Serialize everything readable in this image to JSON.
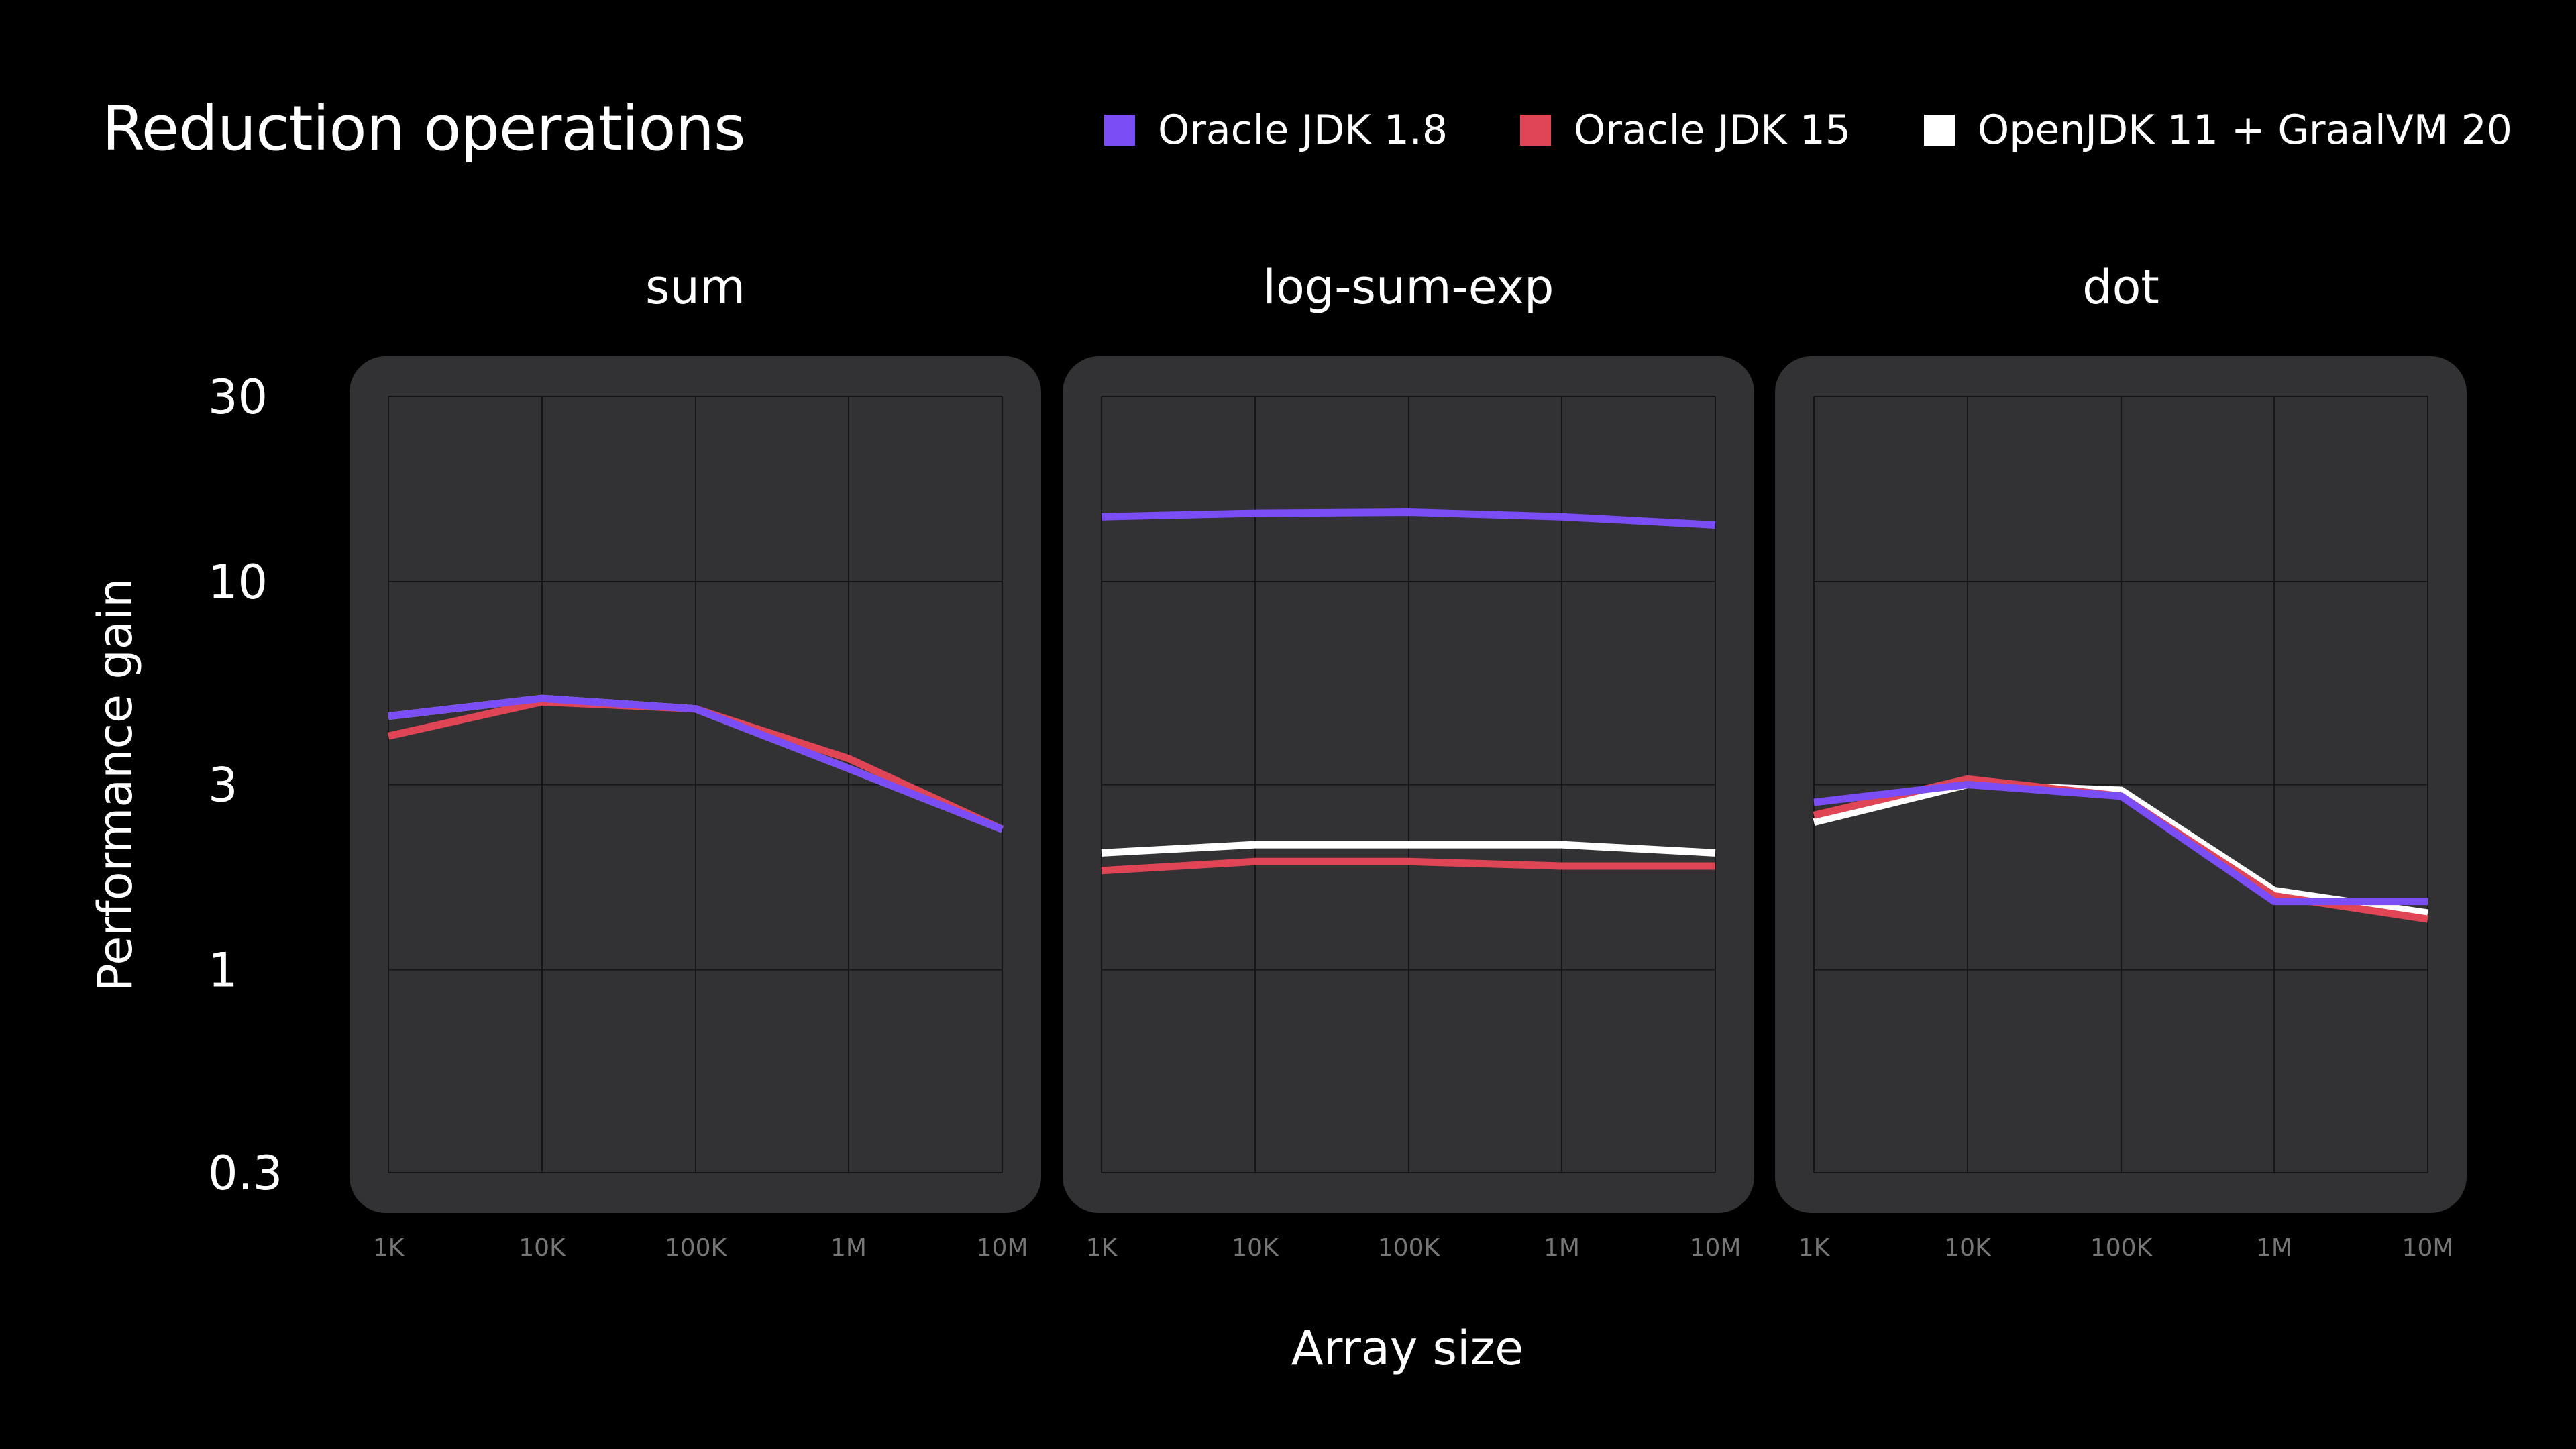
{
  "chart_data": {
    "type": "line",
    "title": "Reduction operations",
    "xlabel": "Array size",
    "ylabel": "Performance gain",
    "y_scale": "log",
    "ylim": [
      0.3,
      30
    ],
    "y_ticks": [
      0.3,
      1,
      3,
      10,
      30
    ],
    "y_tick_labels": [
      "0.3",
      "1",
      "3",
      "10",
      "30"
    ],
    "categories": [
      "1K",
      "10K",
      "100K",
      "1M",
      "10M"
    ],
    "grid": true,
    "legend_position": "top",
    "legend": [
      {
        "name": "Oracle JDK 1.8",
        "color": "#7B4DF5"
      },
      {
        "name": "Oracle JDK 15",
        "color": "#E04556"
      },
      {
        "name": "OpenJDK 11 + GraalVM 20",
        "color": "#FFFFFF"
      }
    ],
    "panels": [
      {
        "title": "sum",
        "series": [
          {
            "name": "OpenJDK 11 + GraalVM 20",
            "values": [
              4.5,
              5.0,
              4.7,
              3.3,
              2.3
            ]
          },
          {
            "name": "Oracle JDK 15",
            "values": [
              4.0,
              4.9,
              4.7,
              3.5,
              2.3
            ]
          },
          {
            "name": "Oracle JDK 1.8",
            "values": [
              4.5,
              5.0,
              4.7,
              3.3,
              2.3
            ]
          }
        ]
      },
      {
        "title": "log-sum-exp",
        "series": [
          {
            "name": "OpenJDK 11 + GraalVM 20",
            "values": [
              2.0,
              2.1,
              2.1,
              2.1,
              2.0
            ]
          },
          {
            "name": "Oracle JDK 15",
            "values": [
              1.8,
              1.9,
              1.9,
              1.85,
              1.85
            ]
          },
          {
            "name": "Oracle JDK 1.8",
            "values": [
              14.7,
              15.0,
              15.1,
              14.7,
              14.0
            ]
          }
        ]
      },
      {
        "title": "dot",
        "series": [
          {
            "name": "OpenJDK 11 + GraalVM 20",
            "values": [
              2.4,
              3.0,
              2.9,
              1.6,
              1.4
            ]
          },
          {
            "name": "Oracle JDK 15",
            "values": [
              2.5,
              3.1,
              2.8,
              1.55,
              1.35
            ]
          },
          {
            "name": "Oracle JDK 1.8",
            "values": [
              2.7,
              3.0,
              2.8,
              1.5,
              1.5
            ]
          }
        ]
      }
    ]
  }
}
